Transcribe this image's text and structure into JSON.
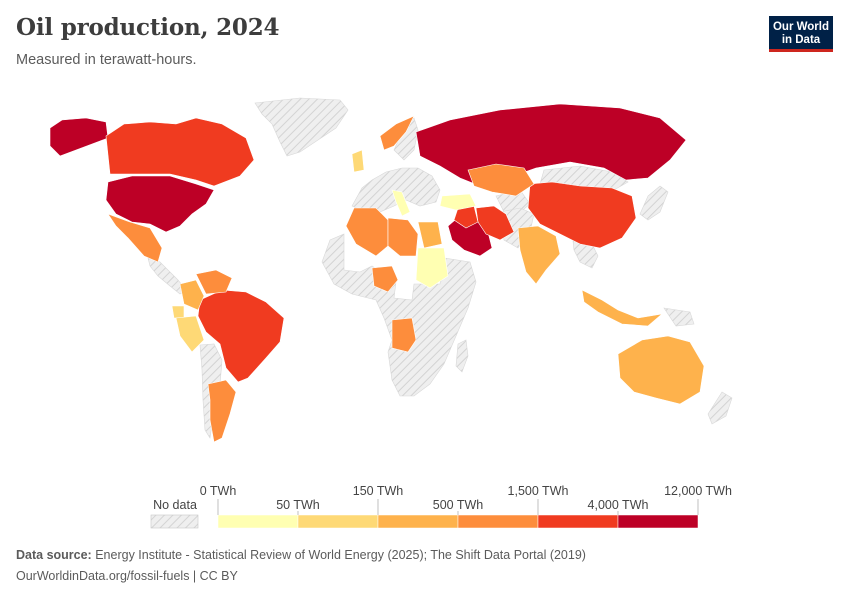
{
  "header": {
    "title": "Oil production, 2024",
    "subtitle": "Measured in terawatt-hours.",
    "logo_line1": "Our World",
    "logo_line2": "in Data"
  },
  "legend": {
    "no_data_label": "No data",
    "bins": [
      {
        "from": "0 TWh",
        "to": "50 TWh",
        "color": "#ffffb2"
      },
      {
        "from": "50 TWh",
        "to": "150 TWh",
        "color": "#fed976"
      },
      {
        "from": "150 TWh",
        "to": "500 TWh",
        "color": "#feb24c"
      },
      {
        "from": "500 TWh",
        "to": "1,500 TWh",
        "color": "#fd8d3c"
      },
      {
        "from": "1,500 TWh",
        "to": "4,000 TWh",
        "color": "#f03b20"
      },
      {
        "from": "4,000 TWh",
        "to": "12,000 TWh",
        "color": "#bd0026"
      }
    ],
    "top_labels": [
      "0 TWh",
      "150 TWh",
      "1,500 TWh",
      "12,000 TWh"
    ],
    "bottom_labels": [
      "50 TWh",
      "500 TWh",
      "4,000 TWh"
    ]
  },
  "colors": {
    "no_data": "#e6e6e6",
    "band1": "#ffffb2",
    "band2": "#fed976",
    "band3": "#feb24c",
    "band4": "#fd8d3c",
    "band5": "#f03b20",
    "band6": "#bd0026"
  },
  "regions": [
    {
      "name": "United States",
      "band": 6
    },
    {
      "name": "Russia",
      "band": 6
    },
    {
      "name": "Saudi Arabia",
      "band": 6
    },
    {
      "name": "Canada",
      "band": 5
    },
    {
      "name": "China",
      "band": 5
    },
    {
      "name": "Brazil",
      "band": 5
    },
    {
      "name": "Iran",
      "band": 5
    },
    {
      "name": "Iraq",
      "band": 5
    },
    {
      "name": "Kazakhstan",
      "band": 4
    },
    {
      "name": "Algeria",
      "band": 4
    },
    {
      "name": "Libya",
      "band": 4
    },
    {
      "name": "Nigeria",
      "band": 4
    },
    {
      "name": "Angola",
      "band": 4
    },
    {
      "name": "Mexico",
      "band": 4
    },
    {
      "name": "Norway",
      "band": 4
    },
    {
      "name": "Venezuela",
      "band": 4
    },
    {
      "name": "Argentina",
      "band": 4
    },
    {
      "name": "India",
      "band": 3
    },
    {
      "name": "Australia",
      "band": 3
    },
    {
      "name": "Indonesia",
      "band": 3
    },
    {
      "name": "Colombia",
      "band": 3
    },
    {
      "name": "Egypt",
      "band": 3
    },
    {
      "name": "Ecuador",
      "band": 2
    },
    {
      "name": "Peru",
      "band": 2
    },
    {
      "name": "United Kingdom",
      "band": 2
    },
    {
      "name": "Sudan",
      "band": 1
    },
    {
      "name": "Italy",
      "band": 1
    },
    {
      "name": "Turkey",
      "band": 1
    }
  ],
  "footer": {
    "source_label": "Data source:",
    "source_text": "Energy Institute - Statistical Review of World Energy (2025); The Shift Data Portal (2019)",
    "url_text": "OurWorldinData.org/fossil-fuels | CC BY"
  }
}
